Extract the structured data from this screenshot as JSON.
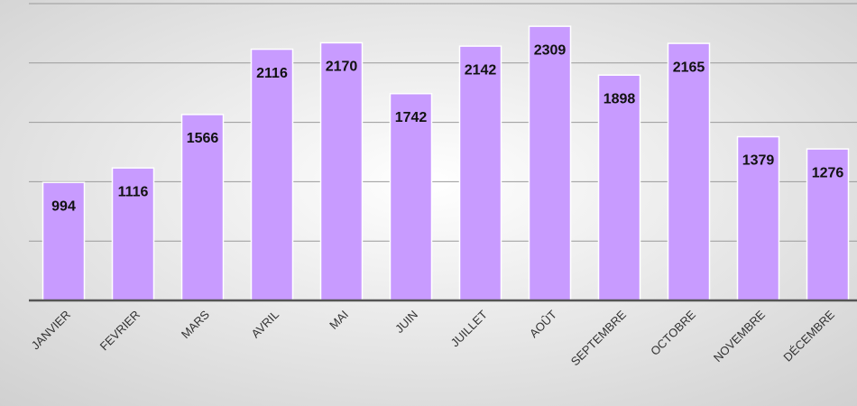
{
  "chart_data": {
    "type": "bar",
    "categories": [
      "JANVIER",
      "FEVRIER",
      "MARS",
      "AVRIL",
      "MAI",
      "JUIN",
      "JUILLET",
      "AOÛT",
      "SEPTEMBRE",
      "OCTOBRE",
      "NOVEMBRE",
      "DÉCEMBRE"
    ],
    "values": [
      994,
      1116,
      1566,
      2116,
      2170,
      1742,
      2142,
      2309,
      1898,
      2165,
      1379,
      1276
    ],
    "color": "#c89bff",
    "ylim": [
      0,
      2500
    ],
    "yticks": [
      0,
      500,
      1000,
      1500,
      2000,
      2500
    ],
    "grid": true
  }
}
